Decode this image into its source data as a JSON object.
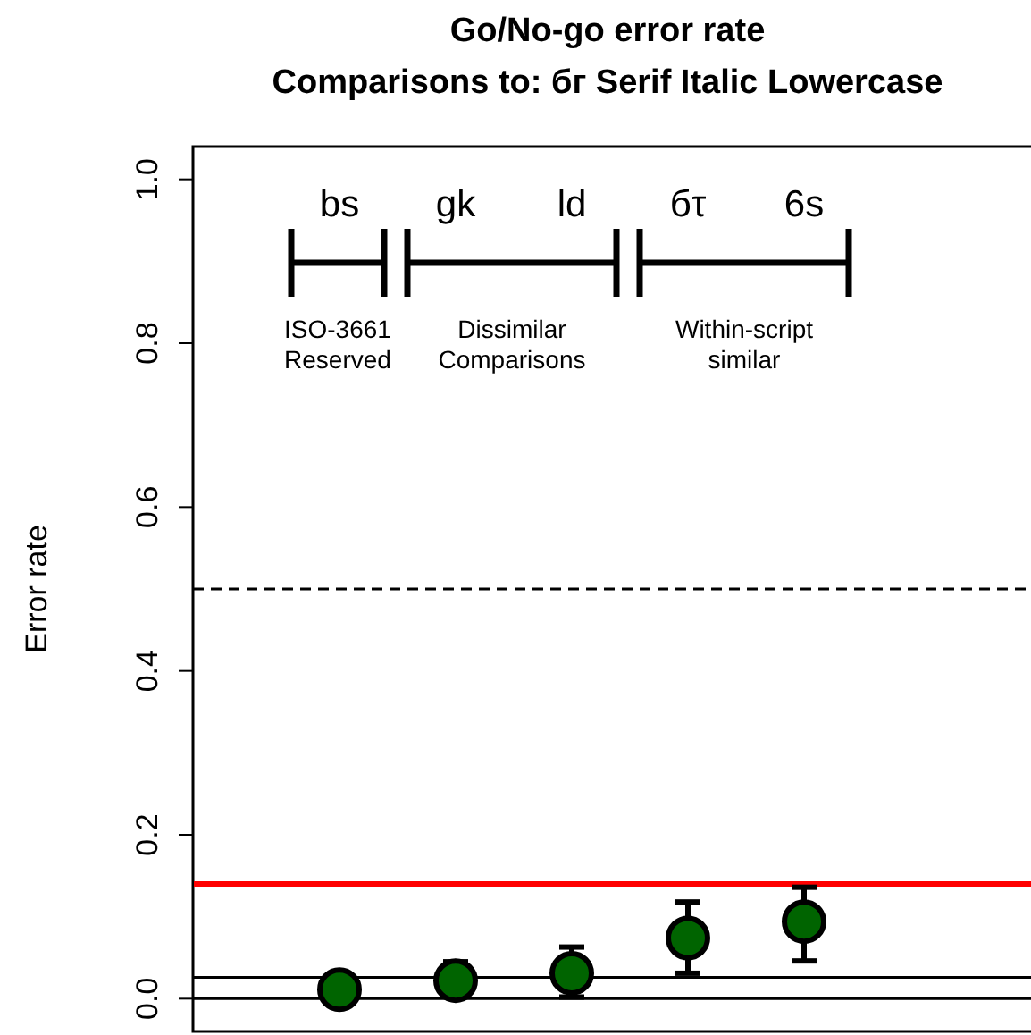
{
  "chart_data": {
    "type": "scatter",
    "title": "Go/No-go error rate",
    "subtitle": "Comparisons to: бг Serif Italic Lowercase",
    "ylabel": "Error rate",
    "categories": [
      "bs",
      "gk",
      "ld",
      "бτ",
      "6s"
    ],
    "series": [
      {
        "color": "#006400",
        "values": [
          0.011,
          0.022,
          0.031,
          0.074,
          0.094
        ],
        "errors": [
          null,
          [
            0.005,
            0.045
          ],
          [
            0.002,
            0.063
          ],
          [
            0.031,
            0.118
          ],
          [
            0.046,
            0.136
          ]
        ]
      }
    ],
    "ylim": [
      -0.04,
      1.04
    ],
    "yticks": [
      {
        "value": 0,
        "label": "0.0"
      },
      0.2,
      0.4,
      0.6,
      0.8,
      {
        "value": 1,
        "label": "1.0"
      }
    ],
    "ref_lines": [
      {
        "axis": "y",
        "value": 0,
        "color": "#000000",
        "line_style": "solid"
      },
      {
        "axis": "y",
        "value": 0.026,
        "color": "#000000",
        "line_style": "solid"
      },
      {
        "axis": "y",
        "value": 0.14,
        "color": "#ff0000",
        "line_style": "solid"
      },
      {
        "axis": "y",
        "value": 0.5,
        "color": "#000000",
        "line_style": "dashed"
      }
    ],
    "annotations": [
      "ISO-3661\nReserved",
      "Dissimilar\nComparisons",
      "Within-script\nsimilar"
    ],
    "marker": "circle",
    "grid": false
  }
}
